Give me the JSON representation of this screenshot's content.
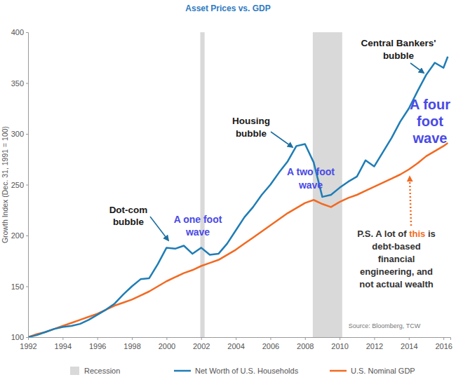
{
  "chart_data": {
    "type": "line",
    "title": "Asset Prices vs. GDP",
    "y_label": "Growth Index (Dec. 31, 1991 = 100)",
    "x": [
      1992,
      1992.5,
      1993,
      1993.5,
      1994,
      1994.5,
      1995,
      1995.5,
      1996,
      1996.5,
      1997,
      1997.5,
      1998,
      1998.5,
      1999,
      1999.5,
      2000,
      2000.5,
      2001,
      2001.5,
      2002,
      2002.5,
      2003,
      2003.5,
      2004,
      2004.5,
      2005,
      2005.5,
      2006,
      2006.5,
      2007,
      2007.5,
      2008,
      2008.5,
      2009,
      2009.5,
      2010,
      2010.5,
      2011,
      2011.5,
      2012,
      2012.5,
      2013,
      2013.5,
      2014,
      2014.5,
      2015,
      2015.5,
      2016,
      2016.25
    ],
    "series": [
      {
        "name": "Net Worth of U.S. Households",
        "color": "#1f7db5",
        "values": [
          100,
          102,
          105,
          108,
          110,
          111,
          113,
          117,
          122,
          127,
          133,
          142,
          150,
          157,
          158,
          172,
          188,
          187,
          190,
          182,
          188,
          181,
          182,
          192,
          205,
          218,
          228,
          240,
          250,
          262,
          273,
          288,
          290,
          272,
          238,
          240,
          247,
          253,
          258,
          274,
          268,
          282,
          296,
          312,
          325,
          342,
          358,
          370,
          365,
          376
        ]
      },
      {
        "name": "U.S. Nominal GDP",
        "color": "#f26a22",
        "values": [
          100,
          103,
          105,
          108,
          111,
          114,
          117,
          120,
          123,
          127,
          131,
          134,
          137,
          141,
          145,
          150,
          155,
          159,
          163,
          166,
          170,
          173,
          176,
          181,
          186,
          192,
          198,
          204,
          210,
          216,
          222,
          227,
          232,
          235,
          231,
          228,
          233,
          237,
          240,
          244,
          248,
          252,
          256,
          260,
          265,
          271,
          278,
          283,
          288,
          291
        ]
      }
    ],
    "recessions": {
      "name": "Recession",
      "color": "#d9d9d9",
      "start": [
        2001.95,
        2008.45
      ],
      "end": [
        2002.2,
        2010.15
      ]
    },
    "xlim": [
      1992,
      2016.4
    ],
    "xticks": [
      1992,
      1994,
      1996,
      1998,
      2000,
      2002,
      2004,
      2006,
      2008,
      2010,
      2012,
      2014,
      2016
    ],
    "ylim": [
      100,
      400
    ],
    "yticks": [
      100,
      150,
      200,
      250,
      300,
      350,
      400
    ],
    "grid": false,
    "legend": "bottom",
    "source": "Source: Bloomberg, TCW",
    "annotations": [
      {
        "lines": [
          [
            "Dot-com"
          ],
          [
            "bubble"
          ]
        ]
      },
      {
        "lines": [
          [
            "Housing"
          ],
          [
            "bubble"
          ]
        ]
      },
      {
        "lines": [
          [
            "Central Bankers'"
          ],
          [
            "bubble"
          ]
        ]
      },
      {
        "lines": [
          [
            "A one foot"
          ],
          [
            "wave"
          ]
        ]
      },
      {
        "lines": [
          [
            "A two foot"
          ],
          [
            "wave"
          ]
        ]
      },
      {
        "lines": [
          [
            "A four"
          ],
          [
            "foot"
          ],
          [
            "wave"
          ]
        ]
      },
      {
        "lines": [
          [
            "P.S. A lot of ",
            "this",
            " is"
          ],
          [
            "debt-based"
          ],
          [
            "financial"
          ],
          [
            "engineering, and"
          ],
          [
            "not actual wealth"
          ]
        ]
      }
    ]
  }
}
